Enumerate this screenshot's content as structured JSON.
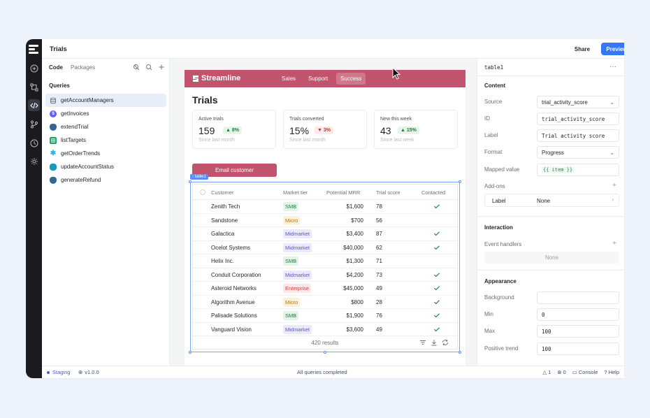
{
  "window": {
    "title": "Trials",
    "share_label": "Share",
    "preview_label": "Preview"
  },
  "rail": {
    "icons": [
      "logo-icon",
      "plus-circle-icon",
      "workflow-icon",
      "code-icon",
      "branch-icon",
      "history-icon",
      "settings-icon"
    ]
  },
  "left_panel": {
    "tabs": [
      {
        "label": "Code",
        "active": true
      },
      {
        "label": "Packages",
        "active": false
      }
    ],
    "queries_heading": "Queries",
    "queries": [
      {
        "name": "getAccountManagers",
        "icon": "database-icon",
        "selected": true
      },
      {
        "name": "getInvoices",
        "icon": "stripe-icon"
      },
      {
        "name": "extendTrial",
        "icon": "postgres-icon"
      },
      {
        "name": "listTargets",
        "icon": "sheets-icon"
      },
      {
        "name": "getOrderTrends",
        "icon": "snowflake-icon"
      },
      {
        "name": "updateAccountStatus",
        "icon": "salesforce-icon"
      },
      {
        "name": "generateRefund",
        "icon": "postgres-icon"
      }
    ]
  },
  "app": {
    "brand": "Streamline",
    "nav": [
      {
        "label": "Sales"
      },
      {
        "label": "Support"
      },
      {
        "label": "Success",
        "active": true
      }
    ],
    "page_title": "Trials",
    "stats": [
      {
        "label": "Active trials",
        "value": "159",
        "badge": "8%",
        "trend": "up",
        "sub": "Since last month"
      },
      {
        "label": "Trials converted",
        "value": "15%",
        "badge": "3%",
        "trend": "down",
        "sub": "Since last month"
      },
      {
        "label": "New this week",
        "value": "43",
        "badge": "15%",
        "trend": "up",
        "sub": "Since last week"
      }
    ],
    "email_button": "Email customer",
    "selection_tag": "table1",
    "table": {
      "columns": [
        "Customer",
        "Market tier",
        "Potential MRR",
        "Trial score",
        "Contacted"
      ],
      "rows": [
        {
          "customer": "Zenith Tech",
          "tier": "SMB",
          "mrr": "$1,600",
          "score": "78",
          "contacted": true
        },
        {
          "customer": "Sandstone",
          "tier": "Micro",
          "mrr": "$700",
          "score": "56",
          "contacted": false
        },
        {
          "customer": "Galactica",
          "tier": "Midmarket",
          "mrr": "$3,400",
          "score": "87",
          "contacted": true
        },
        {
          "customer": "Ocelot Systems",
          "tier": "Midmarket",
          "mrr": "$40,000",
          "score": "62",
          "contacted": true
        },
        {
          "customer": "Helix Inc.",
          "tier": "SMB",
          "mrr": "$1,300",
          "score": "71",
          "contacted": false
        },
        {
          "customer": "Conduit Corporation",
          "tier": "Midmarket",
          "mrr": "$4,200",
          "score": "73",
          "contacted": true
        },
        {
          "customer": "Asteroid Networks",
          "tier": "Enterprise",
          "mrr": "$45,000",
          "score": "49",
          "contacted": true
        },
        {
          "customer": "Algorithm Avenue",
          "tier": "Micro",
          "mrr": "$800",
          "score": "28",
          "contacted": true
        },
        {
          "customer": "Palisade Solutions",
          "tier": "SMB",
          "mrr": "$1,900",
          "score": "76",
          "contacted": true
        },
        {
          "customer": "Vanguard Vision",
          "tier": "Midmarket",
          "mrr": "$3,600",
          "score": "49",
          "contacted": true
        }
      ],
      "results_text": "420 results"
    }
  },
  "tier_colors": {
    "SMB": {
      "bg": "#e3f4e8",
      "fg": "#1e7a3b"
    },
    "Micro": {
      "bg": "#fdf1dc",
      "fg": "#c2760c"
    },
    "Midmarket": {
      "bg": "#ebeafd",
      "fg": "#5b54d6"
    },
    "Enterprise": {
      "bg": "#fde8e8",
      "fg": "#d13a3a"
    }
  },
  "inspector": {
    "title": "table1",
    "content_heading": "Content",
    "source_label": "Source",
    "source_value": "trial_activity_score",
    "id_label": "ID",
    "id_value": "trial_activity_score",
    "label_label": "Label",
    "label_value": "Trial activity score",
    "format_label": "Format",
    "format_value": "Progress",
    "mapped_label": "Mapped value",
    "mapped_value": "{{ item }}",
    "addons_label": "Add-ons",
    "addon_row_label": "Label",
    "addon_row_value": "None",
    "interaction_heading": "Interaction",
    "event_handlers_label": "Event handlers",
    "event_handlers_value": "None",
    "appearance_heading": "Appearance",
    "background_label": "Background",
    "background_value": "",
    "min_label": "Min",
    "min_value": "0",
    "max_label": "Max",
    "max_value": "100",
    "positive_trend_label": "Positive trend",
    "positive_trend_value": "100"
  },
  "statusbar": {
    "environment": "Staging",
    "version": "v1.0.0",
    "status": "All queries completed",
    "warnings": "1",
    "errors": "0",
    "console": "Console",
    "help": "Help"
  },
  "colors": {
    "brand": "#c2536d",
    "accent": "#3378f6",
    "rail": "#1a1a1f",
    "selection": "#5b8ef5"
  }
}
